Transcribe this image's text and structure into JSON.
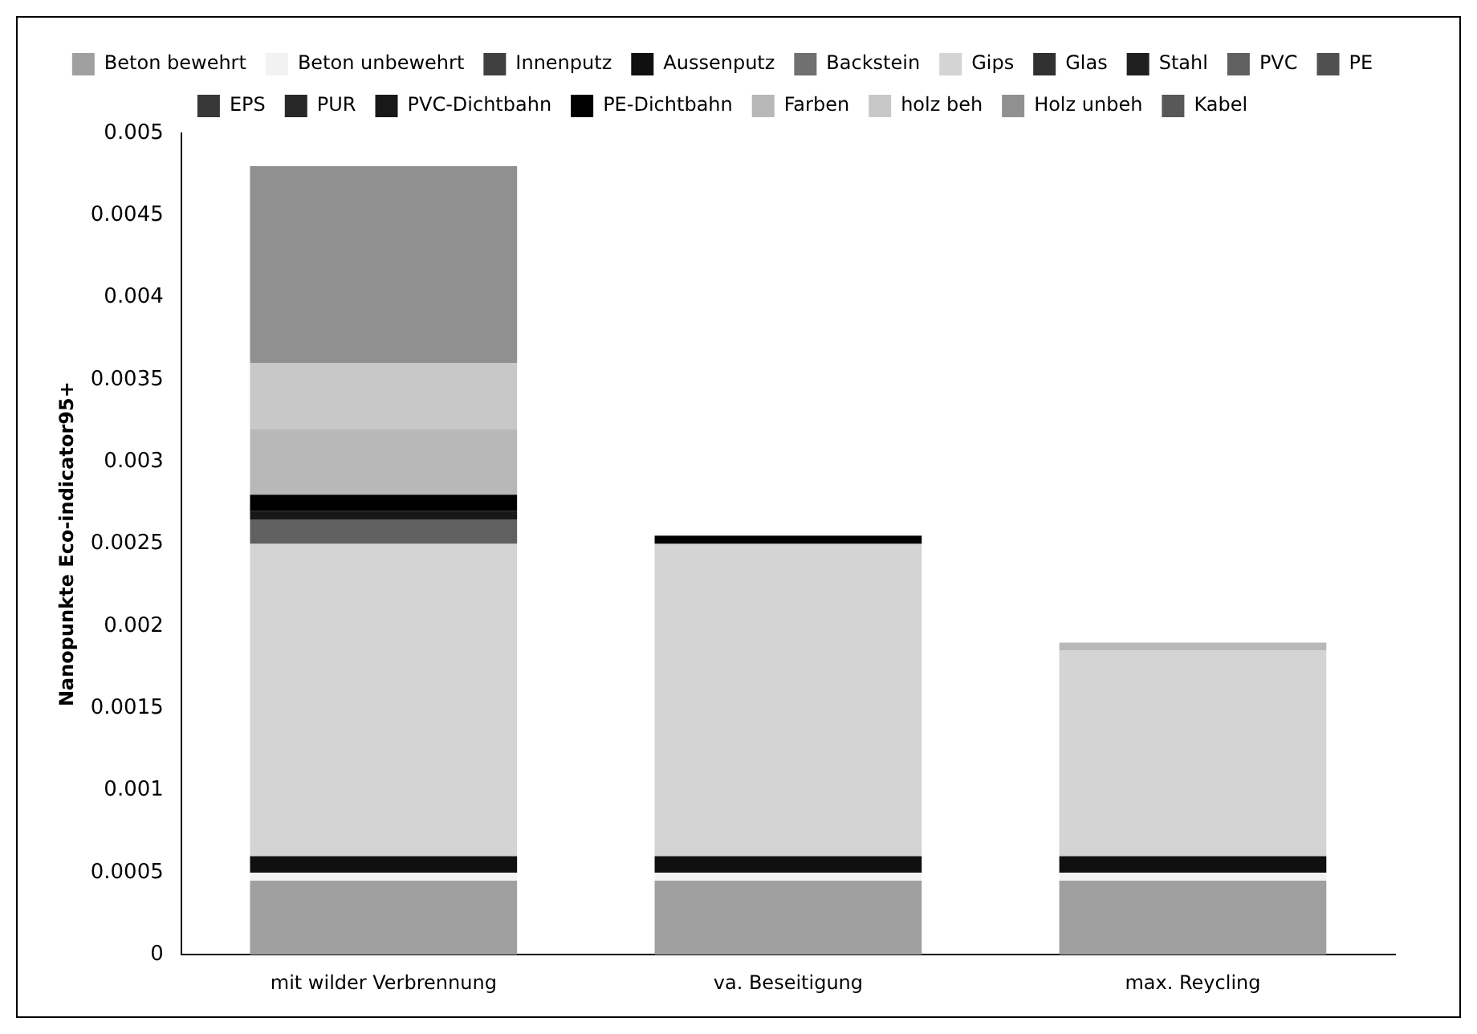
{
  "chart_data": {
    "type": "bar",
    "stacked": true,
    "ylabel": "Nanopunkte Eco-indicator95+",
    "categories": [
      "mit wilder Verbrennung",
      "va. Beseitigung",
      "max. Reycling"
    ],
    "ylim": [
      0,
      0.005
    ],
    "yticks": [
      0,
      0.0005,
      0.001,
      0.0015,
      0.002,
      0.0025,
      0.003,
      0.0035,
      0.004,
      0.0045,
      0.005
    ],
    "grid": false,
    "legend": "top",
    "series": [
      {
        "name": "Beton bewehrt",
        "color": "#a0a0a0",
        "values": [
          0.00045,
          0.00045,
          0.00045
        ]
      },
      {
        "name": "Beton unbewehrt",
        "color": "#f2f2f2",
        "values": [
          5e-05,
          5e-05,
          5e-05
        ]
      },
      {
        "name": "Innenputz",
        "color": "#404040",
        "values": [
          null,
          null,
          null
        ]
      },
      {
        "name": "Aussenputz",
        "color": "#101010",
        "values": [
          0.0001,
          0.0001,
          0.0001
        ]
      },
      {
        "name": "Backstein",
        "color": "#707070",
        "values": [
          null,
          null,
          null
        ]
      },
      {
        "name": "Gips",
        "color": "#d4d4d4",
        "values": [
          0.0019,
          0.0019,
          0.00125
        ]
      },
      {
        "name": "Glas",
        "color": "#303030",
        "values": [
          null,
          null,
          null
        ]
      },
      {
        "name": "Stahl",
        "color": "#202020",
        "values": [
          null,
          null,
          null
        ]
      },
      {
        "name": "PVC",
        "color": "#606060",
        "values": [
          0.00015,
          null,
          null
        ]
      },
      {
        "name": "PE",
        "color": "#505050",
        "values": [
          null,
          null,
          null
        ]
      },
      {
        "name": "EPS",
        "color": "#383838",
        "values": [
          null,
          null,
          null
        ]
      },
      {
        "name": "PUR",
        "color": "#282828",
        "values": [
          null,
          null,
          null
        ]
      },
      {
        "name": "PVC-Dichtbahn",
        "color": "#181818",
        "values": [
          5e-05,
          null,
          null
        ]
      },
      {
        "name": "PE-Dichtbahn",
        "color": "#000000",
        "values": [
          0.0001,
          5e-05,
          null
        ]
      },
      {
        "name": "Farben",
        "color": "#b8b8b8",
        "values": [
          0.0004,
          null,
          5e-05
        ]
      },
      {
        "name": "holz beh",
        "color": "#c8c8c8",
        "values": [
          0.0004,
          null,
          null
        ]
      },
      {
        "name": "Holz unbeh",
        "color": "#909090",
        "values": [
          0.0012,
          null,
          null
        ]
      },
      {
        "name": "Kabel",
        "color": "#585858",
        "values": [
          null,
          null,
          null
        ]
      }
    ]
  }
}
